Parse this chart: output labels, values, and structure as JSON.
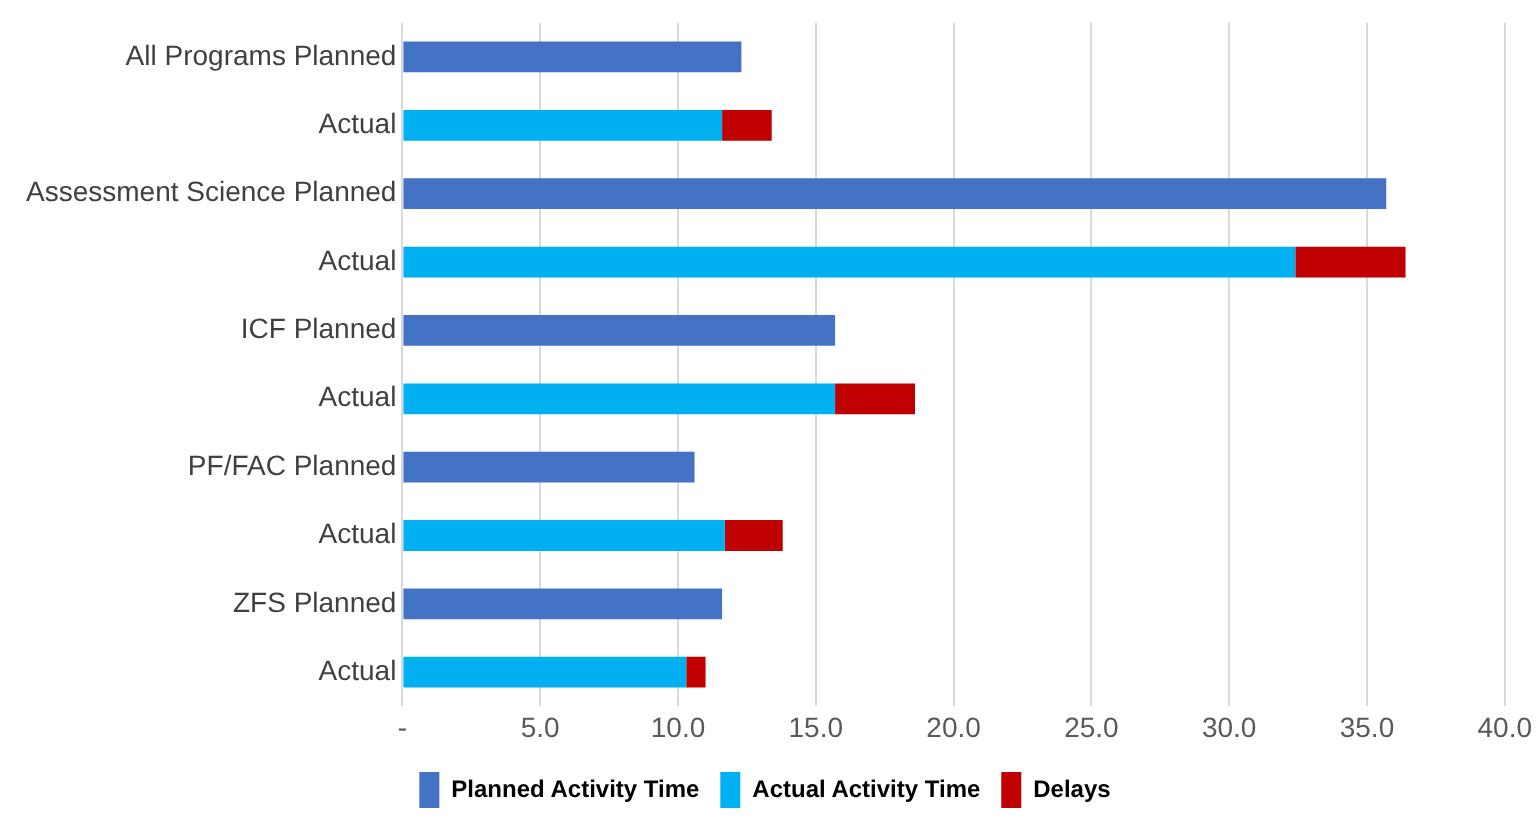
{
  "chart_data": {
    "type": "bar",
    "orientation": "horizontal",
    "stacked": true,
    "categories": [
      "All Programs Planned",
      "Actual",
      "Assessment Science Planned",
      "Actual",
      "ICF Planned",
      "Actual",
      "PF/FAC Planned",
      "Actual",
      "ZFS Planned",
      "Actual"
    ],
    "series": [
      {
        "name": "Planned Activity Time",
        "color": "#4472c4",
        "values": [
          12.3,
          null,
          35.7,
          null,
          15.7,
          null,
          10.6,
          null,
          11.6,
          null
        ]
      },
      {
        "name": "Actual Activity Time",
        "color": "#00b0f0",
        "values": [
          null,
          11.6,
          null,
          32.4,
          null,
          15.7,
          null,
          11.7,
          null,
          10.3
        ]
      },
      {
        "name": "Delays",
        "color": "#c00000",
        "values": [
          null,
          1.8,
          null,
          4.0,
          null,
          2.9,
          null,
          2.1,
          null,
          0.7
        ]
      }
    ],
    "xlim": [
      0,
      40
    ],
    "xticks": [
      {
        "value": 0,
        "label": "-"
      },
      {
        "value": 5,
        "label": "5.0"
      },
      {
        "value": 10,
        "label": "10.0"
      },
      {
        "value": 15,
        "label": "15.0"
      },
      {
        "value": 20,
        "label": "20.0"
      },
      {
        "value": 25,
        "label": "25.0"
      },
      {
        "value": 30,
        "label": "30.0"
      },
      {
        "value": 35,
        "label": "35.0"
      },
      {
        "value": 40,
        "label": "40.0"
      }
    ],
    "grid": "x",
    "legend": "bottom"
  }
}
